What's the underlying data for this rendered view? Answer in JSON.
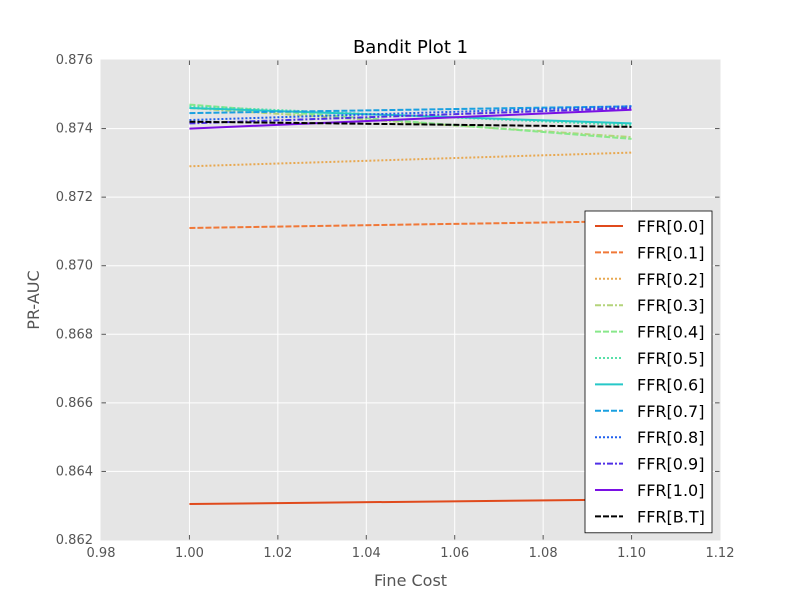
{
  "chart_data": {
    "type": "line",
    "title": "Bandit Plot 1",
    "xlabel": "Fine Cost",
    "ylabel": "PR-AUC",
    "xlim": [
      0.98,
      1.12
    ],
    "ylim": [
      0.862,
      0.876
    ],
    "x_ticks": [
      "0.98",
      "1.00",
      "1.02",
      "1.04",
      "1.06",
      "1.08",
      "1.10",
      "1.12"
    ],
    "y_ticks": [
      "0.862",
      "0.864",
      "0.866",
      "0.868",
      "0.870",
      "0.872",
      "0.874",
      "0.876"
    ],
    "grid": true,
    "legend_position": "lower-right",
    "background": "#e5e5e5",
    "x": [
      1.0,
      1.1
    ],
    "series": [
      {
        "name": "FFR[0.0]",
        "values": [
          0.86305,
          0.86318
        ],
        "color": "#e04a1c",
        "dash": "solid"
      },
      {
        "name": "FFR[0.1]",
        "values": [
          0.8711,
          0.8713
        ],
        "color": "#f07838",
        "dash": "dashed"
      },
      {
        "name": "FFR[0.2]",
        "values": [
          0.8729,
          0.8733
        ],
        "color": "#e8a850",
        "dash": "dotted"
      },
      {
        "name": "FFR[0.3]",
        "values": [
          0.8746,
          0.87375
        ],
        "color": "#b4d47a",
        "dash": "dashdot"
      },
      {
        "name": "FFR[0.4]",
        "values": [
          0.8747,
          0.8737
        ],
        "color": "#88e88a",
        "dash": "dashed"
      },
      {
        "name": "FFR[0.5]",
        "values": [
          0.87465,
          0.8741
        ],
        "color": "#58e0a8",
        "dash": "dotted"
      },
      {
        "name": "FFR[0.6]",
        "values": [
          0.8746,
          0.87415
        ],
        "color": "#26c8c8",
        "dash": "solid"
      },
      {
        "name": "FFR[0.7]",
        "values": [
          0.87445,
          0.87465
        ],
        "color": "#1aa0e0",
        "dash": "dashed"
      },
      {
        "name": "FFR[0.8]",
        "values": [
          0.87425,
          0.87465
        ],
        "color": "#2060ee",
        "dash": "dotted"
      },
      {
        "name": "FFR[0.9]",
        "values": [
          0.87415,
          0.8746
        ],
        "color": "#5030e6",
        "dash": "dashdot"
      },
      {
        "name": "FFR[1.0]",
        "values": [
          0.874,
          0.87455
        ],
        "color": "#7a10e4",
        "dash": "solid"
      },
      {
        "name": "FFR[B.T]",
        "values": [
          0.8742,
          0.87405
        ],
        "color": "#000000",
        "dash": "dashed"
      }
    ]
  }
}
